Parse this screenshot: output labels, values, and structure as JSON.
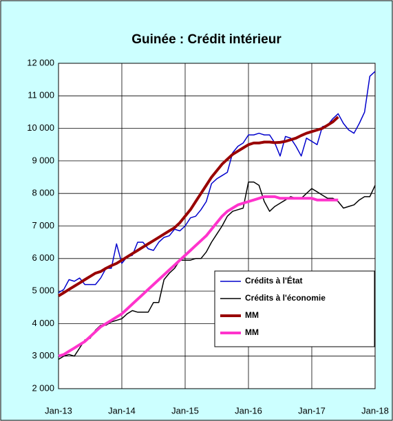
{
  "chart_data": {
    "type": "line",
    "title": "Guinée : Crédit intérieur",
    "categories": [
      "Jan-13",
      null,
      null,
      null,
      null,
      null,
      null,
      null,
      null,
      null,
      null,
      null,
      "Jan-14",
      null,
      null,
      null,
      null,
      null,
      null,
      null,
      null,
      null,
      null,
      null,
      "Jan-15",
      null,
      null,
      null,
      null,
      null,
      null,
      null,
      null,
      null,
      null,
      null,
      "Jan-16",
      null,
      null,
      null,
      null,
      null,
      null,
      null,
      null,
      null,
      null,
      null,
      "Jan-17",
      null,
      null,
      null,
      null,
      null,
      null,
      null,
      null,
      null,
      null,
      null,
      "Jan-18"
    ],
    "series": [
      {
        "name": "Crédits à l'État",
        "color": "#0000cc",
        "width": 1.5,
        "values": [
          4950,
          5050,
          5350,
          5300,
          5400,
          5200,
          5200,
          5200,
          5400,
          5700,
          5700,
          6450,
          5850,
          6050,
          6100,
          6500,
          6500,
          6300,
          6250,
          6500,
          6650,
          6700,
          6900,
          6850,
          7000,
          7250,
          7300,
          7500,
          7750,
          8300,
          8450,
          8550,
          8650,
          9250,
          9450,
          9550,
          9800,
          9800,
          9850,
          9800,
          9800,
          9550,
          9150,
          9750,
          9700,
          9450,
          9150,
          9700,
          9600,
          9500,
          10050,
          10100,
          10300,
          10450,
          10150,
          9950,
          9850,
          10150,
          10500,
          11600,
          11750
        ]
      },
      {
        "name": "Crédits à l'économie",
        "color": "#000000",
        "width": 1.5,
        "values": [
          2900,
          3000,
          3050,
          3000,
          3250,
          3500,
          3550,
          3800,
          3950,
          3950,
          4050,
          4100,
          4150,
          4300,
          4400,
          4350,
          4350,
          4350,
          4650,
          4650,
          5350,
          5550,
          5700,
          5950,
          5950,
          5950,
          6000,
          6000,
          6200,
          6500,
          6750,
          7000,
          7300,
          7450,
          7500,
          7550,
          8350,
          8350,
          8250,
          7750,
          7450,
          7600,
          7700,
          7800,
          7900,
          7850,
          7850,
          8000,
          8150,
          8050,
          7950,
          7850,
          7850,
          7750,
          7550,
          7600,
          7650,
          7800,
          7900,
          7900,
          8250
        ]
      },
      {
        "name": "MM",
        "color": "#990000",
        "width": 4,
        "values": [
          4850,
          4950,
          5050,
          5150,
          5250,
          5350,
          5450,
          5550,
          5600,
          5700,
          5780,
          5850,
          5950,
          6050,
          6150,
          6250,
          6350,
          6450,
          6550,
          6650,
          6750,
          6850,
          6950,
          7100,
          7300,
          7500,
          7750,
          8000,
          8250,
          8500,
          8700,
          8900,
          9050,
          9200,
          9300,
          9400,
          9500,
          9550,
          9550,
          9580,
          9580,
          9560,
          9570,
          9600,
          9650,
          9700,
          9780,
          9850,
          9900,
          9950,
          10000,
          10100,
          10200,
          10350,
          null,
          null,
          null,
          null,
          null,
          null,
          null
        ]
      },
      {
        "name": "MM",
        "color": "#ff33cc",
        "width": 4,
        "values": [
          3000,
          3050,
          3150,
          3250,
          3350,
          3450,
          3600,
          3750,
          3900,
          4000,
          4100,
          4200,
          4300,
          4450,
          4600,
          4750,
          4900,
          5050,
          5200,
          5350,
          5500,
          5650,
          5800,
          5950,
          6100,
          6250,
          6400,
          6550,
          6700,
          6900,
          7100,
          7300,
          7450,
          7550,
          7650,
          7700,
          7750,
          7800,
          7850,
          7900,
          7900,
          7900,
          7850,
          7850,
          7850,
          7850,
          7850,
          7850,
          7850,
          7800,
          7800,
          7800,
          7800,
          7800,
          null,
          null,
          null,
          null,
          null,
          null,
          null
        ]
      }
    ],
    "ylim": [
      2000,
      12000
    ],
    "yticks": [
      {
        "value": 2000,
        "label": "2 000"
      },
      {
        "value": 3000,
        "label": "3 000"
      },
      {
        "value": 4000,
        "label": "4 000"
      },
      {
        "value": 5000,
        "label": "5 000"
      },
      {
        "value": 6000,
        "label": "6 000"
      },
      {
        "value": 7000,
        "label": "7 000"
      },
      {
        "value": 8000,
        "label": "8 000"
      },
      {
        "value": 9000,
        "label": "9 000"
      },
      {
        "value": 10000,
        "label": "10 000"
      },
      {
        "value": 11000,
        "label": "11 000"
      },
      {
        "value": 12000,
        "label": "12 000"
      }
    ],
    "grid": true
  }
}
